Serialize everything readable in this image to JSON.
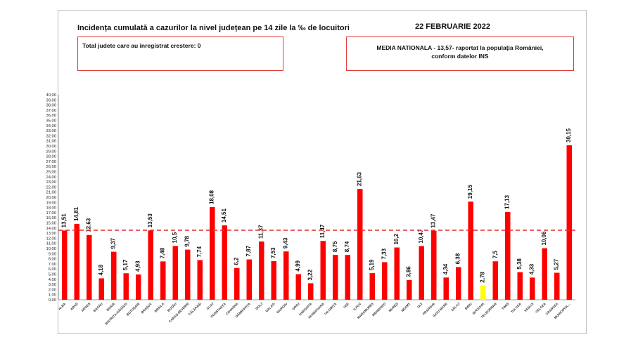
{
  "header": {
    "title": "Incidența cumulată a cazurilor la nivel județean pe 14 zile la ‰ de locuitori",
    "date": "22 FEBRUARIE 2022"
  },
  "info_boxes": {
    "growth": "Total judete care au inregistrat crestere: 0",
    "national_line1": "MEDIA NATIONALA - 13,57-  raportat la populația României,",
    "national_line2": "conform datelor INS"
  },
  "colors": {
    "bar": "#ff0000",
    "highlight_bar": "#ffff00",
    "average_line": "#e8322e",
    "box_border": "#e23b3b"
  },
  "chart_data": {
    "type": "bar",
    "title": "Incidența cumulată a cazurilor la nivel județean pe 14 zile la ‰ de locuitori",
    "categories": [
      "ALBA",
      "ARAD",
      "ARGEȘ",
      "BACĂU",
      "BIHOR",
      "BISTRIȚA-NĂSĂUD",
      "BOTOȘANI",
      "BRAȘOV",
      "BRĂILA",
      "BUZĂU",
      "CARAȘ-SEVERIN",
      "CĂLĂRAȘI",
      "CLUJ",
      "CONSTANȚA",
      "COVASNA",
      "DÂMBOVIȚA",
      "DOLJ",
      "GALAȚI",
      "GIURGIU",
      "GORJ",
      "HARGHITA",
      "HUNEDOARA",
      "IALOMIȚA",
      "IAȘI",
      "ILFOV",
      "MARAMUREȘ",
      "MEHEDINȚI",
      "MUREȘ",
      "NEAMȚ",
      "OLT",
      "PRAHOVA",
      "SATU MARE",
      "SĂLAJ",
      "SIBIU",
      "SUCEAVA",
      "TELEORMAN",
      "TIMIȘ",
      "TULCEA",
      "VASLUI",
      "VÂLCEA",
      "VRANCEA",
      "MUNICIPIUL..."
    ],
    "values": [
      13.51,
      14.81,
      12.63,
      4.18,
      9.37,
      5.17,
      4.93,
      13.53,
      7.48,
      10.5,
      9.78,
      7.74,
      18.08,
      14.51,
      6.2,
      7.87,
      11.37,
      7.53,
      9.43,
      4.99,
      3.22,
      11.47,
      8.75,
      8.74,
      21.63,
      5.19,
      7.33,
      10.2,
      3.86,
      10.47,
      13.47,
      4.34,
      6.38,
      19.15,
      2.78,
      7.5,
      17.13,
      5.38,
      4.33,
      10.06,
      5.27,
      30.15
    ],
    "value_labels": [
      "13,51",
      "14,81",
      "12,63",
      "4,18",
      "9,37",
      "5,17",
      "4,93",
      "13,53",
      "7,48",
      "10,5",
      "9,78",
      "7,74",
      "18,08",
      "14,51",
      "6,2",
      "7,87",
      "11,37",
      "7,53",
      "9,43",
      "4,99",
      "3,22",
      "11,47",
      "8,75",
      "8,74",
      "21,63",
      "5,19",
      "7,33",
      "10,2",
      "3,86",
      "10,47",
      "13,47",
      "4,34",
      "6,38",
      "19,15",
      "2,78",
      "7,5",
      "17,13",
      "5,38",
      "4,33",
      "10,06",
      "5,27",
      "30,15"
    ],
    "highlight_category": "SUCEAVA",
    "average_value": 13.57,
    "ylim": [
      0,
      40
    ],
    "ytick_step": 1,
    "ytick_labels": [
      "0,00",
      "1,00",
      "2,00",
      "3,00",
      "4,00",
      "5,00",
      "6,00",
      "7,00",
      "8,00",
      "9,00",
      "10,00",
      "11,00",
      "12,00",
      "13,00",
      "14,00",
      "15,00",
      "16,00",
      "17,00",
      "18,00",
      "19,00",
      "20,00",
      "21,00",
      "22,00",
      "23,00",
      "24,00",
      "25,00",
      "26,00",
      "27,00",
      "28,00",
      "29,00",
      "30,00",
      "31,00",
      "32,00",
      "33,00",
      "34,00",
      "35,00",
      "36,00",
      "37,00",
      "38,00",
      "39,00",
      "40,00"
    ],
    "xlabel": "",
    "ylabel": "",
    "grid": false,
    "legend": "none"
  }
}
